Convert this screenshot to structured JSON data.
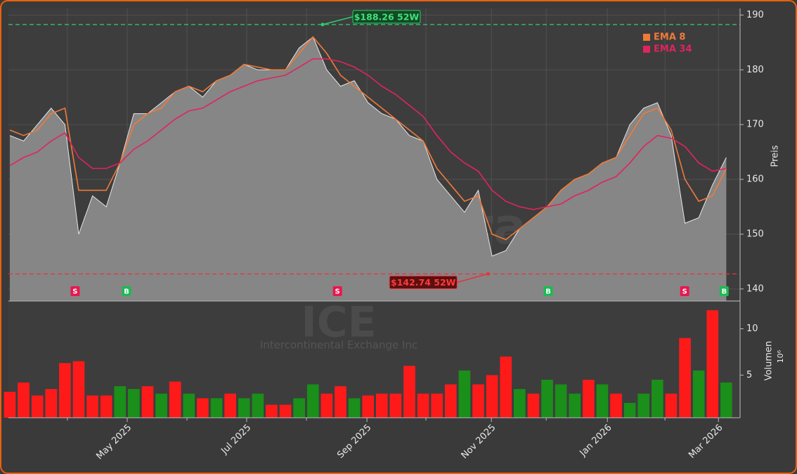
{
  "chart_data": [
    {
      "type": "area",
      "watermark": "forexsignale.trade",
      "ylabel": "Preis",
      "x": [
        0,
        1,
        2,
        3,
        4,
        5,
        6,
        7,
        8,
        9,
        10,
        11,
        12,
        13,
        14,
        15,
        16,
        17,
        18,
        19,
        20,
        21,
        22,
        23,
        24,
        25,
        26,
        27,
        28,
        29,
        30,
        31,
        32,
        33,
        34,
        35,
        36,
        37,
        38,
        39,
        40,
        41,
        42,
        43,
        44,
        45,
        46,
        47,
        48,
        49,
        50,
        51,
        52
      ],
      "values": [
        168,
        167,
        170,
        173,
        170,
        150,
        157,
        155,
        163,
        172,
        172,
        174,
        176,
        177,
        175,
        178,
        179,
        181,
        180,
        180,
        180,
        184,
        186,
        180,
        177,
        178,
        174,
        172,
        171,
        168,
        167,
        160,
        157,
        154,
        158,
        146,
        147,
        151,
        153,
        155,
        158,
        160,
        161,
        163,
        164,
        170,
        173,
        174,
        168,
        152,
        153,
        159,
        164
      ],
      "color": "#e6e6e6",
      "fill_color": "#868686",
      "series": [
        {
          "name": "EMA 8",
          "color": "#f07a3a",
          "values": [
            169,
            168,
            169,
            172,
            173,
            158,
            158,
            158,
            163,
            170,
            172,
            173,
            176,
            177,
            176,
            178,
            179,
            181,
            180.5,
            180,
            180,
            183,
            186,
            183,
            179,
            177,
            175,
            173,
            171,
            169,
            167,
            162,
            159,
            156,
            157,
            150,
            149,
            151,
            153,
            155,
            158,
            160,
            161,
            163,
            164,
            168,
            172,
            173,
            169,
            160,
            156,
            157,
            162
          ]
        },
        {
          "name": "EMA 34",
          "color": "#e0245e",
          "values": [
            162.5,
            164,
            165,
            167,
            168.5,
            164,
            162,
            162,
            163,
            165.5,
            167,
            169,
            171,
            172.5,
            173,
            174.5,
            176,
            177,
            178,
            178.5,
            179,
            180.5,
            182,
            182,
            181.5,
            180.5,
            179,
            177,
            175.5,
            173.5,
            171.5,
            168,
            165,
            163,
            161.5,
            158,
            156,
            155,
            154.5,
            155,
            155.5,
            157,
            158,
            159.5,
            160.5,
            163,
            166,
            168,
            167.5,
            166,
            163,
            161.5,
            162
          ]
        }
      ],
      "legend": "upper right",
      "grid": true,
      "xlim": [
        -0.1,
        53.0
      ],
      "xticks": [
        4.18,
        8.52,
        12.86,
        17.19,
        21.53,
        25.92,
        30.2,
        34.95,
        38.93,
        43.37,
        47.55,
        51.43
      ],
      "ylim": [
        137.8,
        191.2
      ],
      "yticks": [
        140,
        150,
        160,
        170,
        180,
        190
      ],
      "annotations": [
        {
          "text": "$188.26 52W",
          "value": 188.26,
          "x": 22.7,
          "color": "#2ecc71"
        },
        {
          "text": "$142.74 52W",
          "value": 142.74,
          "x": 34.7,
          "color": "#e8323c"
        }
      ],
      "signals": [
        {
          "label": "S",
          "x": 4.74,
          "color": "#e8174f"
        },
        {
          "label": "B",
          "x": 8.47,
          "color": "#1db954"
        },
        {
          "label": "S",
          "x": 23.78,
          "color": "#e8174f"
        },
        {
          "label": "B",
          "x": 39.08,
          "color": "#1db954"
        },
        {
          "label": "S",
          "x": 48.98,
          "color": "#e8174f"
        },
        {
          "label": "B",
          "x": 51.84,
          "color": "#1db954"
        }
      ]
    },
    {
      "type": "bar",
      "watermark": "ICE",
      "watermark_subtitle": "Intercontinental Exchange Inc",
      "ylabel": "Volumen",
      "ylabel_exponent": "10⁶",
      "x": [
        0,
        1,
        2,
        3,
        4,
        5,
        6,
        7,
        8,
        9,
        10,
        11,
        12,
        13,
        14,
        15,
        16,
        17,
        18,
        19,
        20,
        21,
        22,
        23,
        24,
        25,
        26,
        27,
        28,
        29,
        30,
        31,
        32,
        33,
        34,
        35,
        36,
        37,
        38,
        39,
        40,
        41,
        42,
        43,
        44,
        45,
        46,
        47,
        48,
        49,
        50,
        51,
        52
      ],
      "values": [
        3.2,
        4.2,
        2.8,
        3.5,
        6.3,
        6.5,
        2.8,
        2.8,
        3.8,
        3.5,
        3.8,
        3.0,
        4.3,
        3.0,
        2.5,
        2.5,
        3.0,
        2.5,
        3.0,
        1.8,
        1.8,
        2.5,
        4.0,
        3.0,
        3.8,
        2.5,
        2.8,
        3.0,
        3.0,
        6.0,
        3.0,
        3.0,
        4.0,
        5.5,
        4.0,
        5.0,
        7.0,
        3.5,
        3.0,
        4.5,
        4.0,
        3.0,
        4.5,
        4.0,
        3.0,
        2.0,
        3.0,
        4.5,
        3.0,
        9.0,
        5.5,
        12.0,
        4.2
      ],
      "colors": [
        "#ff1a1a",
        "#ff1a1a",
        "#ff1a1a",
        "#ff1a1a",
        "#ff1a1a",
        "#ff1a1a",
        "#ff1a1a",
        "#ff1a1a",
        "#1a8f1a",
        "#1a8f1a",
        "#ff1a1a",
        "#1a8f1a",
        "#ff1a1a",
        "#1a8f1a",
        "#ff1a1a",
        "#1a8f1a",
        "#ff1a1a",
        "#1a8f1a",
        "#1a8f1a",
        "#ff1a1a",
        "#ff1a1a",
        "#1a8f1a",
        "#1a8f1a",
        "#ff1a1a",
        "#ff1a1a",
        "#1a8f1a",
        "#ff1a1a",
        "#ff1a1a",
        "#ff1a1a",
        "#ff1a1a",
        "#ff1a1a",
        "#ff1a1a",
        "#ff1a1a",
        "#1a8f1a",
        "#ff1a1a",
        "#ff1a1a",
        "#ff1a1a",
        "#1a8f1a",
        "#ff1a1a",
        "#1a8f1a",
        "#1a8f1a",
        "#1a8f1a",
        "#ff1a1a",
        "#1a8f1a",
        "#ff1a1a",
        "#1a8f1a",
        "#1a8f1a",
        "#1a8f1a",
        "#ff1a1a",
        "#ff1a1a",
        "#1a8f1a",
        "#ff1a1a",
        "#1a8f1a"
      ],
      "xlim": [
        -0.1,
        53.0
      ],
      "xticks": [
        {
          "value": 8.52,
          "label": "May 2025"
        },
        {
          "value": 17.19,
          "label": "Jul 2025"
        },
        {
          "value": 25.92,
          "label": "Sep 2025"
        },
        {
          "value": 34.95,
          "label": "Nov 2025"
        },
        {
          "value": 43.37,
          "label": "Jan 2026"
        },
        {
          "value": 51.43,
          "label": "Mar 2026"
        }
      ],
      "xminor_ticks": [
        4.18,
        12.86,
        21.53,
        30.2,
        38.93,
        47.55
      ],
      "ylim": [
        0.4,
        13
      ],
      "yticks": [
        5,
        10
      ]
    }
  ]
}
